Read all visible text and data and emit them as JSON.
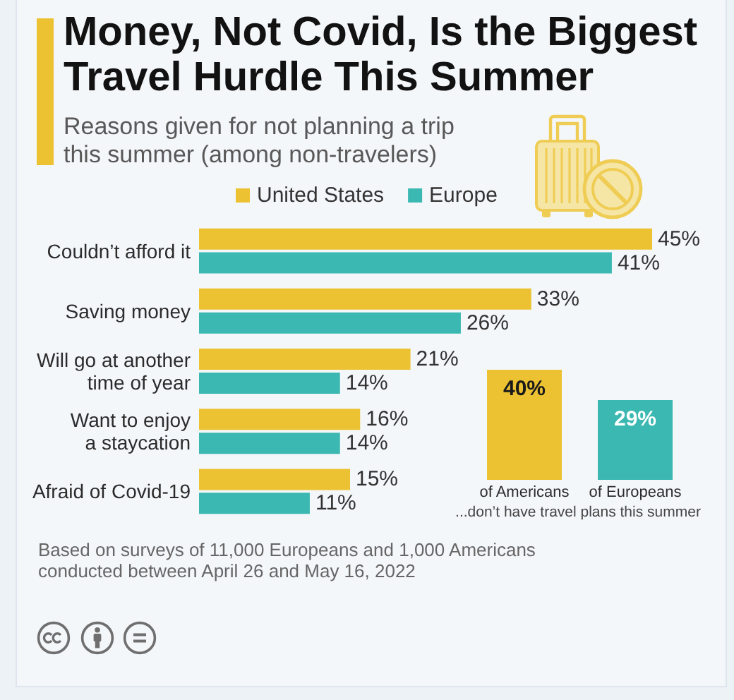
{
  "chart_data": [
    {
      "type": "bar",
      "title": "Money, Not Covid, Is the Biggest Travel Hurdle This Summer",
      "subtitle": "Reasons given for not planning a trip this summer (among non-travelers)",
      "orientation": "horizontal",
      "legend": "top",
      "categories": [
        "Couldn’t afford it",
        "Saving money",
        "Will go at another time of year",
        "Want to enjoy a staycation",
        "Afraid of Covid-19"
      ],
      "series": [
        {
          "name": "United States",
          "color": "#ecc232",
          "values": [
            45,
            33,
            21,
            16,
            15
          ],
          "value_labels": [
            "45%",
            "33%",
            "21%",
            "16%",
            "15%"
          ]
        },
        {
          "name": "Europe",
          "color": "#3bb8b1",
          "values": [
            41,
            26,
            14,
            14,
            11
          ],
          "value_labels": [
            "41%",
            "26%",
            "14%",
            "14%",
            "11%"
          ]
        }
      ],
      "annotations": [
        "Based on surveys of 11,000 Europeans and 1,000 Americans conducted between April 26 and May 16, 2022"
      ]
    },
    {
      "type": "bar",
      "categories": [
        "of Americans",
        "of Europeans"
      ],
      "values": [
        40,
        29
      ],
      "colors": [
        "#ecc232",
        "#3bb8b1"
      ],
      "value_labels": [
        "40%",
        "29%"
      ],
      "annotations": [
        "...don’t have travel plans this summer"
      ]
    }
  ]
}
